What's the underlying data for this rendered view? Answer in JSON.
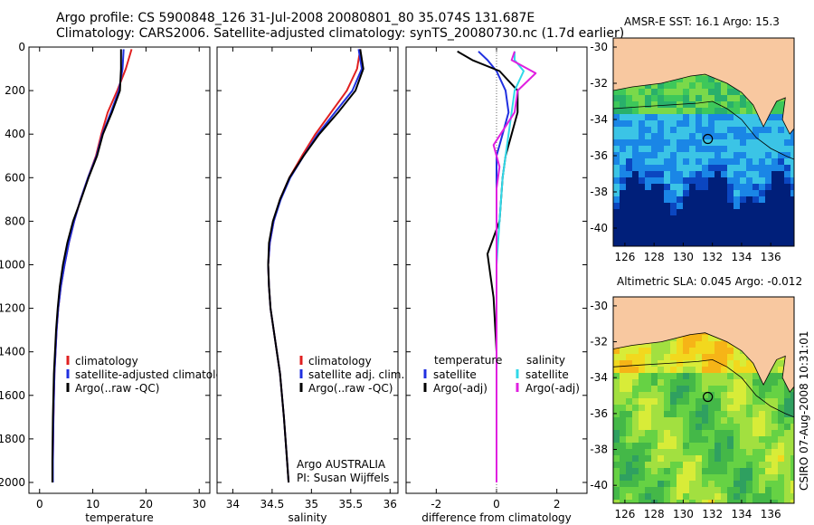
{
  "figure": {
    "title_line1": "Argo profile: CS 5900848_126 31-Jul-2008 20080801_80 35.074S 131.687E",
    "title_line2": "Climatology: CARS2006. Satellite-adjusted climatology: synTS_20080730.nc (1.7d earlier)",
    "credit": "CSIRO 07-Aug-2008 10:31:01",
    "argo_note_line1": "Argo AUSTRALIA",
    "argo_note_line2": "PI: Susan Wijffels"
  },
  "colors": {
    "climatology": "#e02020",
    "satellite": "#2030e0",
    "argo": "#000000",
    "salinity_satellite": "#30d8e8",
    "salinity_argo": "#e020e0",
    "land": "#f8c8a0",
    "ocean_deep": "#001f7a"
  },
  "chart_data": [
    {
      "type": "line",
      "panel": "temperature",
      "xlabel": "temperature",
      "ylabel": "",
      "xlim": [
        -2,
        32
      ],
      "ylim": [
        2050,
        0
      ],
      "xticks": [
        0,
        10,
        20,
        30
      ],
      "yticks": [
        0,
        200,
        400,
        600,
        800,
        1000,
        1200,
        1400,
        1600,
        1800,
        2000
      ],
      "legend": [
        "climatology",
        "satellite-adjusted climatolo",
        "Argo(..raw -QC)"
      ],
      "legend_position": "lower-right",
      "series": [
        {
          "name": "climatology",
          "color_key": "climatology",
          "x": [
            17.3,
            16.2,
            14.6,
            12.8,
            11.6,
            10.6,
            9.1,
            7.7,
            6.5,
            5.5,
            4.7,
            4.0,
            3.5,
            3.2,
            3.0,
            2.8,
            2.6,
            2.5,
            2.5
          ],
          "y": [
            10,
            100,
            200,
            300,
            400,
            500,
            600,
            700,
            800,
            900,
            1000,
            1100,
            1200,
            1300,
            1400,
            1500,
            1700,
            1900,
            2000
          ]
        },
        {
          "name": "satellite-adjusted climatolo",
          "color_key": "satellite",
          "x": [
            15.8,
            15.6,
            14.9,
            13.4,
            11.8,
            10.7,
            9.1,
            7.7,
            6.5,
            5.5,
            4.7,
            4.0,
            3.5,
            3.2,
            3.0,
            2.8,
            2.6,
            2.5,
            2.5
          ],
          "y": [
            10,
            100,
            200,
            300,
            400,
            500,
            600,
            700,
            800,
            900,
            1000,
            1100,
            1200,
            1300,
            1400,
            1500,
            1700,
            1900,
            2000
          ]
        },
        {
          "name": "Argo(..raw -QC)",
          "color_key": "argo",
          "x": [
            15.3,
            15.3,
            15.1,
            13.6,
            11.9,
            10.8,
            9.2,
            7.8,
            6.3,
            5.2,
            4.4,
            3.8,
            3.4,
            3.1,
            2.9,
            2.7,
            2.5,
            2.4,
            2.4
          ],
          "y": [
            10,
            100,
            200,
            300,
            400,
            500,
            600,
            700,
            800,
            900,
            1000,
            1100,
            1200,
            1300,
            1400,
            1500,
            1700,
            1900,
            2000
          ]
        }
      ]
    },
    {
      "type": "line",
      "panel": "salinity",
      "xlabel": "salinity",
      "ylabel": "",
      "xlim": [
        33.8,
        36.1
      ],
      "ylim": [
        2050,
        0
      ],
      "xticks": [
        34,
        34.5,
        35,
        35.5,
        36
      ],
      "legend": [
        "climatology",
        "satellite adj. clim.",
        "Argo(..raw -QC)"
      ],
      "legend_position": "lower-right",
      "series": [
        {
          "name": "climatology",
          "color_key": "climatology",
          "x": [
            35.62,
            35.58,
            35.45,
            35.25,
            35.05,
            34.88,
            34.72,
            34.6,
            34.52,
            34.47,
            34.45,
            34.46,
            34.48,
            34.52,
            34.56,
            34.6,
            34.65,
            34.69,
            34.71
          ],
          "y": [
            10,
            100,
            200,
            300,
            400,
            500,
            600,
            700,
            800,
            900,
            1000,
            1100,
            1200,
            1300,
            1400,
            1500,
            1700,
            1900,
            2000
          ]
        },
        {
          "name": "satellite adj. clim.",
          "color_key": "satellite",
          "x": [
            35.6,
            35.64,
            35.52,
            35.3,
            35.08,
            34.9,
            34.73,
            34.61,
            34.52,
            34.47,
            34.45,
            34.46,
            34.48,
            34.52,
            34.56,
            34.6,
            34.65,
            34.69,
            34.71
          ],
          "y": [
            10,
            100,
            200,
            300,
            400,
            500,
            600,
            700,
            800,
            900,
            1000,
            1100,
            1200,
            1300,
            1400,
            1500,
            1700,
            1900,
            2000
          ]
        },
        {
          "name": "Argo(..raw -QC)",
          "color_key": "argo",
          "x": [
            35.62,
            35.66,
            35.56,
            35.34,
            35.1,
            34.9,
            34.72,
            34.6,
            34.51,
            34.46,
            34.45,
            34.46,
            34.48,
            34.52,
            34.56,
            34.6,
            34.65,
            34.69,
            34.71
          ],
          "y": [
            10,
            100,
            200,
            300,
            400,
            500,
            600,
            700,
            800,
            900,
            1000,
            1100,
            1200,
            1300,
            1400,
            1500,
            1700,
            1900,
            2000
          ]
        }
      ]
    },
    {
      "type": "line",
      "panel": "difference",
      "xlabel": "difference from climatology",
      "ylabel": "",
      "xlim": [
        -3,
        3
      ],
      "ylim": [
        2050,
        0
      ],
      "xticks": [
        -2,
        0,
        2
      ],
      "legend_columns": [
        {
          "heading": "temperature",
          "entries": [
            "satellite",
            "Argo(-adj)"
          ]
        },
        {
          "heading": "salinity",
          "entries": [
            "satellite",
            "Argo(-adj)"
          ]
        }
      ],
      "legend_position": "lower-center",
      "series": [
        {
          "name": "temperature satellite",
          "color_key": "satellite",
          "x": [
            -0.6,
            -0.3,
            0.0,
            0.3,
            0.4,
            0.2,
            0.0,
            0.0,
            0.0,
            0.0,
            0.0,
            0.0,
            0.0,
            0.0
          ],
          "y": [
            20,
            60,
            110,
            200,
            300,
            400,
            500,
            600,
            800,
            1000,
            1200,
            1500,
            1800,
            2000
          ]
        },
        {
          "name": "temperature Argo(-adj)",
          "color_key": "argo",
          "x": [
            -1.3,
            -0.8,
            0.1,
            0.7,
            0.7,
            0.5,
            0.3,
            0.2,
            0.1,
            -0.3,
            -0.2,
            -0.1,
            0.0,
            0.0,
            0.0
          ],
          "y": [
            20,
            60,
            110,
            200,
            300,
            400,
            500,
            600,
            800,
            950,
            1050,
            1150,
            1400,
            1700,
            2000
          ]
        },
        {
          "name": "salinity satellite",
          "color_key": "salinity_satellite",
          "x": [
            0.6,
            0.6,
            0.9,
            0.6,
            0.5,
            0.4,
            0.3,
            0.2,
            0.1,
            0.0,
            0.0,
            0.0,
            0.0,
            0.0
          ],
          "y": [
            20,
            60,
            110,
            200,
            300,
            400,
            500,
            600,
            800,
            1000,
            1200,
            1500,
            1800,
            2000
          ]
        },
        {
          "name": "salinity Argo(-adj)",
          "color_key": "salinity_argo",
          "x": [
            0.6,
            0.5,
            1.3,
            0.7,
            0.6,
            -0.1,
            0.1,
            0.0,
            0.0,
            0.0,
            0.0,
            0.0,
            0.0,
            0.0
          ],
          "y": [
            20,
            60,
            120,
            200,
            300,
            450,
            550,
            650,
            800,
            1000,
            1200,
            1500,
            1800,
            2000
          ]
        }
      ]
    },
    {
      "type": "heatmap",
      "panel": "sst-map",
      "title": "AMSR-E SST: 16.1  Argo: 15.3",
      "xticks": [
        126,
        128,
        130,
        132,
        134,
        136
      ],
      "yticks": [
        -30,
        -32,
        -34,
        -36,
        -38,
        -40
      ],
      "xlim": [
        125.2,
        137.6
      ],
      "ylim": [
        -41,
        -29.5
      ],
      "profile_location": {
        "lon": 131.687,
        "lat": -35.074
      },
      "colormap": [
        "#001f7a",
        "#0b46c0",
        "#1a86e6",
        "#3bc4e6",
        "#29b06b",
        "#3ec85a",
        "#7ad94a"
      ],
      "value_range": [
        12,
        18
      ]
    },
    {
      "type": "heatmap",
      "panel": "sla-map",
      "title": "Altimetric SLA: 0.045  Argo: -0.012",
      "xticks": [
        126,
        128,
        130,
        132,
        134,
        136
      ],
      "yticks": [
        -30,
        -32,
        -34,
        -36,
        -38,
        -40
      ],
      "xlim": [
        125.2,
        137.6
      ],
      "ylim": [
        -41,
        -29.5
      ],
      "profile_location": {
        "lon": 131.687,
        "lat": -35.074
      },
      "colormap": [
        "#2fa060",
        "#44b848",
        "#66d244",
        "#a2e040",
        "#d8ec38",
        "#f2d81e",
        "#f6b417"
      ],
      "value_range": [
        -0.2,
        0.2
      ]
    }
  ]
}
